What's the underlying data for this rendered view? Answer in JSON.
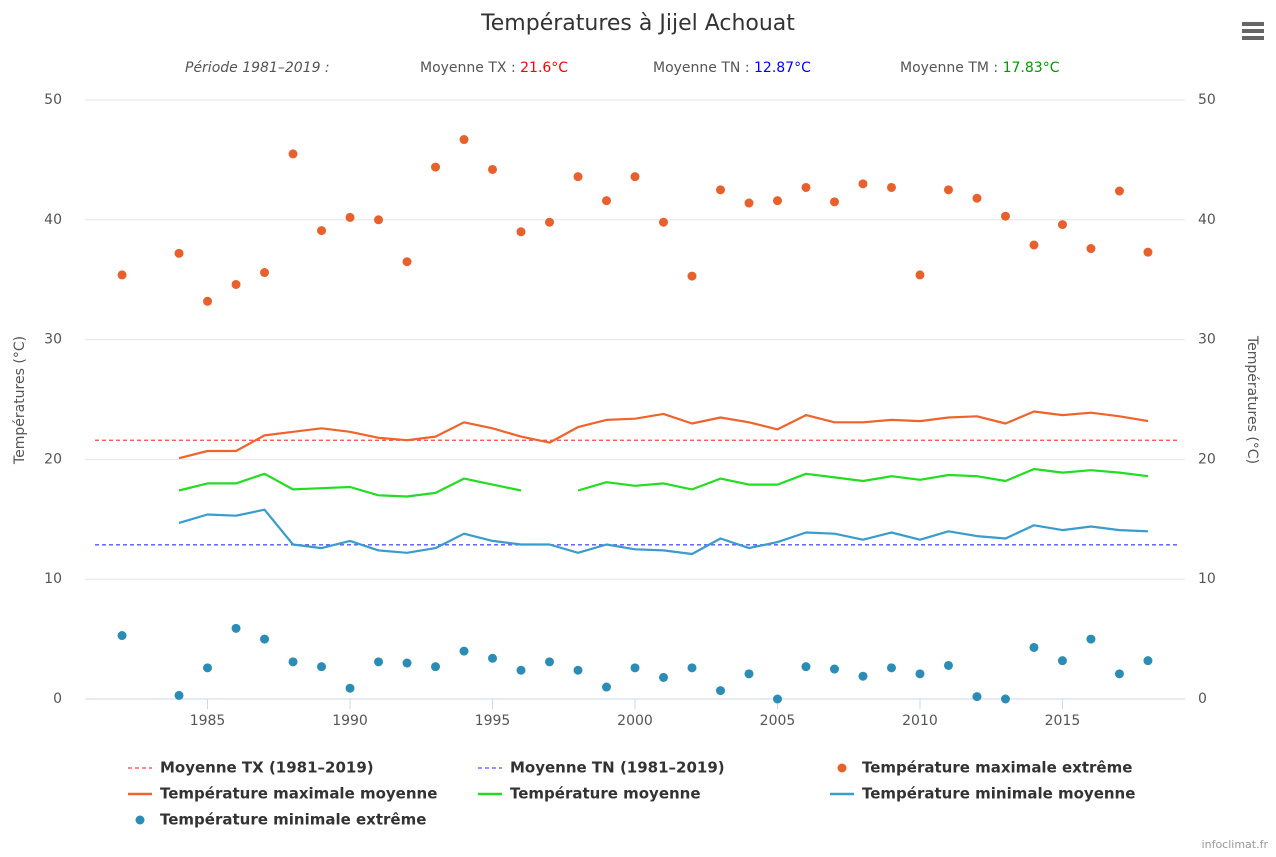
{
  "chart_data": {
    "type": "line",
    "title": "Températures à Jijel Achouat",
    "period": "Période 1981–2019 :",
    "stats": [
      {
        "label": "Moyenne TX :",
        "value": 21.6,
        "value_label": "21.6°C",
        "color": "#ff0000",
        "line_name": "Moyenne TX (1981–2019)",
        "line_color": "#ff4444"
      },
      {
        "label": "Moyenne TN :",
        "value": 12.87,
        "value_label": "12.87°C",
        "color": "#0000ff",
        "line_name": "Moyenne TN (1981–2019)",
        "line_color": "#5555ff"
      },
      {
        "label": "Moyenne TM :",
        "value": 17.83,
        "value_label": "17.83°C",
        "color": "#009900"
      }
    ],
    "y_label": "Températures (°C)",
    "y2_label": "Températures (°C)",
    "x": [
      1982,
      1983,
      1984,
      1985,
      1986,
      1987,
      1988,
      1989,
      1990,
      1991,
      1992,
      1993,
      1994,
      1995,
      1996,
      1997,
      1998,
      1999,
      2000,
      2001,
      2002,
      2003,
      2004,
      2005,
      2006,
      2007,
      2008,
      2009,
      2010,
      2011,
      2012,
      2013,
      2014,
      2015,
      2016,
      2017,
      2018
    ],
    "xlim": [
      1980.7,
      2019.3
    ],
    "xticks": [
      1985,
      1990,
      1995,
      2000,
      2005,
      2010,
      2015
    ],
    "ylim": [
      0,
      50
    ],
    "yticks": [
      0,
      10,
      20,
      30,
      40,
      50
    ],
    "y2lim": [
      0,
      50
    ],
    "y2ticks": [
      0,
      10,
      20,
      30,
      40,
      50
    ],
    "grid": true,
    "legend": "bottom",
    "series": [
      {
        "name": "Température maximale extrême",
        "style": "marker",
        "color": "#e8602c",
        "values": [
          35.4,
          null,
          37.2,
          33.2,
          34.6,
          35.6,
          45.5,
          39.1,
          40.2,
          40.0,
          36.5,
          44.4,
          46.7,
          44.2,
          39.0,
          39.8,
          43.6,
          41.6,
          43.6,
          39.8,
          35.3,
          42.5,
          41.4,
          41.6,
          42.7,
          41.5,
          43.0,
          42.7,
          35.4,
          42.5,
          41.8,
          40.3,
          37.9,
          39.6,
          37.6,
          42.4,
          37.3
        ]
      },
      {
        "name": "Température maximale moyenne",
        "style": "line",
        "color": "#f0642c",
        "values": [
          null,
          null,
          20.1,
          20.7,
          20.7,
          22.0,
          22.3,
          22.6,
          22.3,
          21.8,
          21.6,
          21.9,
          23.1,
          22.6,
          21.9,
          21.4,
          22.7,
          23.3,
          23.4,
          23.8,
          23.0,
          23.5,
          23.1,
          22.5,
          23.7,
          23.1,
          23.1,
          23.3,
          23.2,
          23.5,
          23.6,
          23.0,
          24.0,
          23.7,
          23.9,
          23.6,
          23.2
        ]
      },
      {
        "name": "Température moyenne",
        "style": "line",
        "color": "#22dd22",
        "values": [
          null,
          null,
          17.4,
          18.0,
          18.0,
          18.8,
          17.5,
          17.6,
          17.7,
          17.0,
          16.9,
          17.2,
          18.4,
          17.9,
          17.4,
          null,
          17.4,
          18.1,
          17.8,
          18.0,
          17.5,
          18.4,
          17.9,
          17.9,
          18.8,
          18.5,
          18.2,
          18.6,
          18.3,
          18.7,
          18.6,
          18.2,
          19.2,
          18.9,
          19.1,
          18.9,
          18.6
        ]
      },
      {
        "name": "Température minimale moyenne",
        "style": "line",
        "color": "#3a9ccc",
        "values": [
          null,
          null,
          14.7,
          15.4,
          15.3,
          15.8,
          12.9,
          12.6,
          13.2,
          12.4,
          12.2,
          12.6,
          13.8,
          13.2,
          12.9,
          12.9,
          12.2,
          12.9,
          12.5,
          12.4,
          12.1,
          13.4,
          12.6,
          13.1,
          13.9,
          13.8,
          13.3,
          13.9,
          13.3,
          14.0,
          13.6,
          13.4,
          14.5,
          14.1,
          14.4,
          14.1,
          14.0
        ]
      },
      {
        "name": "Température minimale extrême",
        "style": "marker",
        "color": "#2b8cb6",
        "values": [
          5.3,
          null,
          0.3,
          2.6,
          5.9,
          5.0,
          3.1,
          2.7,
          0.9,
          3.1,
          3.0,
          2.7,
          4.0,
          3.4,
          2.4,
          3.1,
          2.4,
          1.0,
          2.6,
          1.8,
          2.6,
          0.7,
          2.1,
          0.0,
          2.7,
          2.5,
          1.9,
          2.6,
          2.1,
          2.8,
          0.2,
          0.0,
          4.3,
          3.2,
          5.0,
          2.1,
          3.2
        ]
      }
    ],
    "credit": "infoclimat.fr"
  }
}
